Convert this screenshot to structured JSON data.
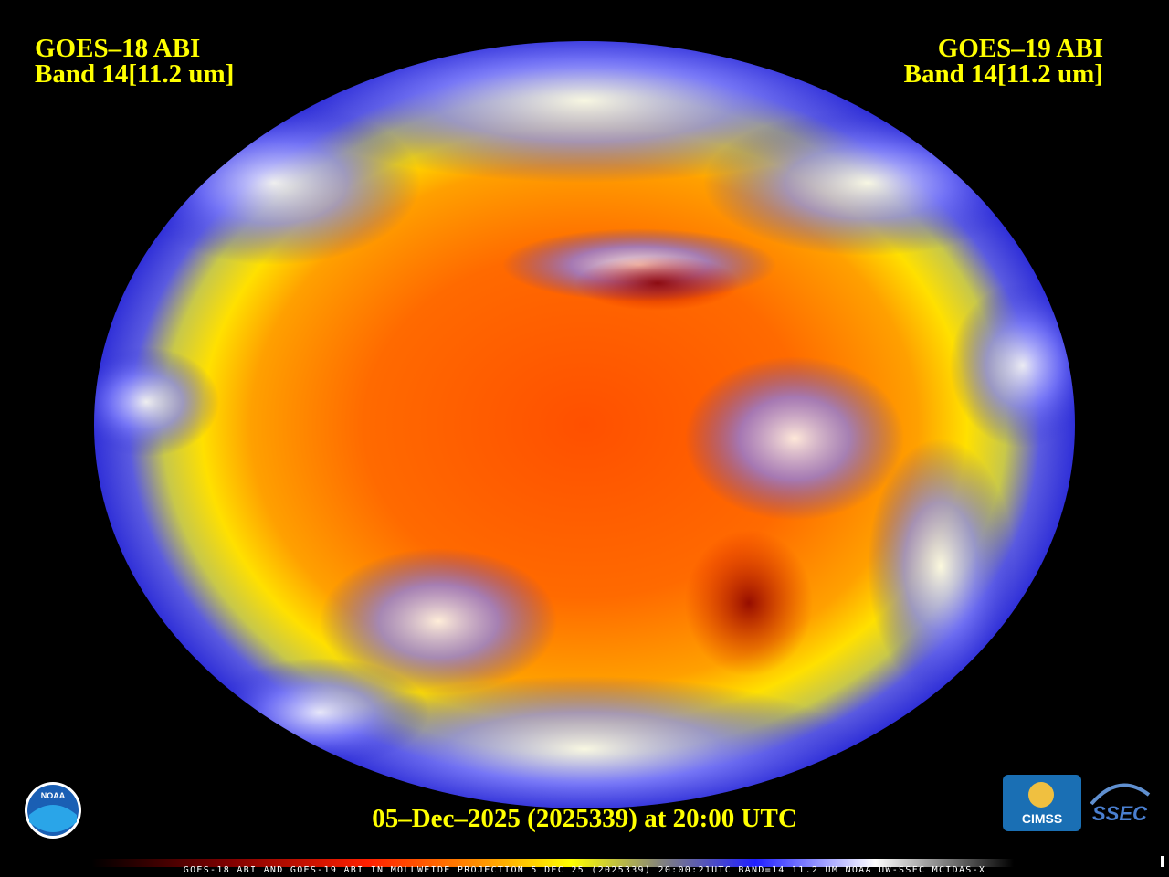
{
  "header": {
    "left": {
      "title": "GOES–18 ABI",
      "band": "Band 14[11.2 um]"
    },
    "right": {
      "title": "GOES–19 ABI",
      "band": "Band 14[11.2 um]"
    }
  },
  "timestamp": "05–Dec–2025 (2025339) at 20:00 UTC",
  "footer": "GOES-18 ABI AND GOES-19 ABI IN MOLLWEIDE PROJECTION 5 DEC 25 (2025339) 20:00:21UTC BAND=14 11.2 UM NOAA UW-SSEC MCIDAS-X",
  "logos": {
    "noaa": "NOAA",
    "cimss": "CIMSS",
    "ssec": "SSEC"
  }
}
